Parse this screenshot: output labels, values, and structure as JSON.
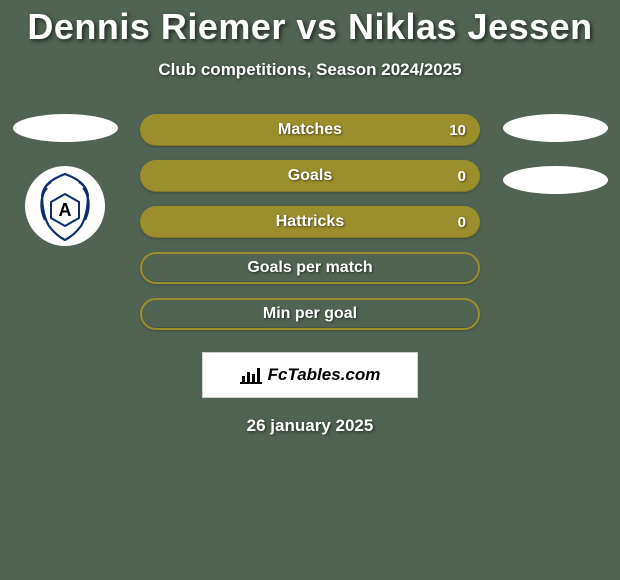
{
  "title": "Dennis Riemer vs Niklas Jessen",
  "subtitle": "Club competitions, Season 2024/2025",
  "date": "26 january 2025",
  "brand": "FcTables.com",
  "colors": {
    "background": "#516353",
    "bar_filled": "#9b8e2d",
    "bar_outline_border": "#9b8e2d",
    "text": "#ffffff"
  },
  "left": {
    "pills": [
      true
    ],
    "club": true
  },
  "right": {
    "pills": [
      true,
      true
    ]
  },
  "stats": [
    {
      "label": "Matches",
      "value": "10",
      "filled": true
    },
    {
      "label": "Goals",
      "value": "0",
      "filled": true
    },
    {
      "label": "Hattricks",
      "value": "0",
      "filled": true
    },
    {
      "label": "Goals per match",
      "value": "",
      "filled": false
    },
    {
      "label": "Min per goal",
      "value": "",
      "filled": false
    }
  ]
}
